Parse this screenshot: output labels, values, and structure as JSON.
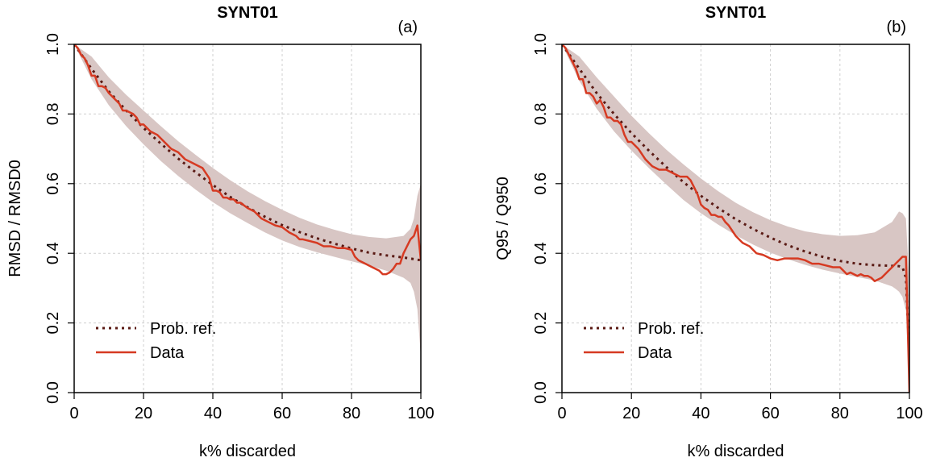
{
  "chart_data": [
    {
      "type": "line",
      "title": "SYNT01",
      "panel_label": "(a)",
      "xlabel": "k% discarded",
      "ylabel": "RMSD / RMSD0",
      "xlim": [
        0,
        100
      ],
      "ylim": [
        0,
        1
      ],
      "x_ticks": [
        "0",
        "20",
        "40",
        "60",
        "80",
        "100"
      ],
      "y_ticks": [
        "0.0",
        "0.2",
        "0.4",
        "0.6",
        "0.8",
        "1.0"
      ],
      "grid": true,
      "legend_position": "bottom-left",
      "series": [
        {
          "name": "Prob. ref.",
          "style": "dotted",
          "color": "#5a1a14",
          "x": [
            0,
            5,
            10,
            15,
            20,
            25,
            30,
            35,
            40,
            45,
            50,
            55,
            60,
            65,
            70,
            75,
            80,
            85,
            90,
            95,
            100
          ],
          "y": [
            1.0,
            0.93,
            0.865,
            0.81,
            0.76,
            0.715,
            0.672,
            0.633,
            0.596,
            0.562,
            0.532,
            0.505,
            0.481,
            0.461,
            0.443,
            0.428,
            0.414,
            0.402,
            0.394,
            0.388,
            0.38
          ]
        },
        {
          "name": "Data",
          "style": "solid",
          "color": "#d63a22",
          "x": [
            0,
            1,
            2,
            3,
            4,
            5,
            6,
            7,
            8,
            9,
            10,
            11,
            12,
            13,
            14,
            15,
            16,
            17,
            18,
            19,
            20,
            22,
            24,
            26,
            28,
            30,
            32,
            34,
            36,
            37,
            38,
            39,
            40,
            41,
            42,
            43,
            44,
            45,
            46,
            47,
            48,
            50,
            52,
            54,
            56,
            58,
            60,
            62,
            64,
            65,
            66,
            68,
            70,
            72,
            74,
            76,
            78,
            80,
            81,
            82,
            84,
            86,
            88,
            89,
            90,
            91,
            92,
            93,
            94,
            95,
            96,
            97,
            98,
            99,
            100
          ],
          "y": [
            1.0,
            0.99,
            0.97,
            0.96,
            0.94,
            0.91,
            0.91,
            0.88,
            0.88,
            0.875,
            0.86,
            0.85,
            0.84,
            0.83,
            0.81,
            0.81,
            0.805,
            0.8,
            0.79,
            0.77,
            0.77,
            0.75,
            0.74,
            0.72,
            0.7,
            0.69,
            0.67,
            0.66,
            0.65,
            0.645,
            0.63,
            0.615,
            0.58,
            0.58,
            0.575,
            0.56,
            0.56,
            0.555,
            0.555,
            0.545,
            0.545,
            0.53,
            0.52,
            0.5,
            0.49,
            0.48,
            0.475,
            0.46,
            0.45,
            0.44,
            0.44,
            0.435,
            0.43,
            0.42,
            0.42,
            0.415,
            0.415,
            0.41,
            0.39,
            0.38,
            0.37,
            0.36,
            0.35,
            0.34,
            0.34,
            0.345,
            0.355,
            0.37,
            0.37,
            0.4,
            0.42,
            0.44,
            0.45,
            0.48,
            0.38
          ]
        }
      ],
      "band": {
        "color": "#d8c6c4",
        "x": [
          0,
          5,
          10,
          15,
          20,
          25,
          30,
          35,
          40,
          45,
          50,
          55,
          60,
          65,
          70,
          75,
          80,
          85,
          90,
          95,
          97,
          98,
          99,
          100
        ],
        "upper": [
          1.0,
          0.965,
          0.905,
          0.855,
          0.81,
          0.765,
          0.722,
          0.683,
          0.645,
          0.61,
          0.578,
          0.55,
          0.525,
          0.502,
          0.483,
          0.468,
          0.455,
          0.447,
          0.443,
          0.45,
          0.47,
          0.5,
          0.565,
          0.6
        ],
        "lower": [
          1.0,
          0.9,
          0.825,
          0.765,
          0.713,
          0.665,
          0.622,
          0.583,
          0.547,
          0.515,
          0.487,
          0.46,
          0.437,
          0.418,
          0.403,
          0.39,
          0.377,
          0.365,
          0.35,
          0.33,
          0.315,
          0.29,
          0.24,
          0.1
        ]
      }
    },
    {
      "type": "line",
      "title": "SYNT01",
      "panel_label": "(b)",
      "xlabel": "k% discarded",
      "ylabel": "Q95 / Q950",
      "xlim": [
        0,
        100
      ],
      "ylim": [
        0,
        1
      ],
      "x_ticks": [
        "0",
        "20",
        "40",
        "60",
        "80",
        "100"
      ],
      "y_ticks": [
        "0.0",
        "0.2",
        "0.4",
        "0.6",
        "0.8",
        "1.0"
      ],
      "grid": true,
      "legend_position": "bottom-left",
      "series": [
        {
          "name": "Prob. ref.",
          "style": "dotted",
          "color": "#5a1a14",
          "x": [
            0,
            5,
            10,
            15,
            20,
            25,
            30,
            35,
            40,
            45,
            50,
            55,
            60,
            65,
            70,
            75,
            80,
            85,
            90,
            95,
            97,
            98,
            99,
            100
          ],
          "y": [
            1.0,
            0.93,
            0.86,
            0.8,
            0.745,
            0.695,
            0.648,
            0.604,
            0.565,
            0.53,
            0.498,
            0.47,
            0.445,
            0.423,
            0.405,
            0.39,
            0.378,
            0.37,
            0.366,
            0.364,
            0.363,
            0.36,
            0.33,
            0.1
          ]
        },
        {
          "name": "Data",
          "style": "solid",
          "color": "#d63a22",
          "x": [
            0,
            1,
            2,
            3,
            4,
            5,
            6,
            7,
            8,
            9,
            10,
            11,
            12,
            13,
            14,
            15,
            16,
            17,
            18,
            19,
            20,
            22,
            24,
            26,
            28,
            30,
            32,
            34,
            36,
            37,
            38,
            39,
            40,
            41,
            42,
            43,
            44,
            45,
            46,
            47,
            48,
            50,
            52,
            54,
            56,
            58,
            60,
            62,
            64,
            66,
            68,
            70,
            72,
            74,
            76,
            78,
            80,
            81,
            82,
            83,
            84,
            85,
            86,
            87,
            88,
            89,
            90,
            91,
            92,
            93,
            94,
            95,
            96,
            97,
            98,
            99,
            100
          ],
          "y": [
            1.0,
            0.99,
            0.97,
            0.95,
            0.93,
            0.9,
            0.9,
            0.86,
            0.86,
            0.85,
            0.83,
            0.84,
            0.82,
            0.79,
            0.79,
            0.78,
            0.78,
            0.77,
            0.74,
            0.72,
            0.72,
            0.7,
            0.67,
            0.65,
            0.64,
            0.64,
            0.63,
            0.62,
            0.62,
            0.61,
            0.59,
            0.57,
            0.54,
            0.53,
            0.525,
            0.51,
            0.51,
            0.505,
            0.505,
            0.49,
            0.48,
            0.45,
            0.43,
            0.42,
            0.4,
            0.395,
            0.385,
            0.38,
            0.385,
            0.385,
            0.385,
            0.38,
            0.37,
            0.37,
            0.365,
            0.36,
            0.36,
            0.35,
            0.34,
            0.345,
            0.34,
            0.335,
            0.34,
            0.335,
            0.335,
            0.33,
            0.32,
            0.325,
            0.33,
            0.34,
            0.35,
            0.36,
            0.37,
            0.38,
            0.39,
            0.39,
            0.0
          ]
        }
      ],
      "band": {
        "color": "#d8c6c4",
        "x": [
          0,
          5,
          10,
          15,
          20,
          25,
          30,
          35,
          40,
          45,
          50,
          55,
          60,
          65,
          70,
          75,
          80,
          85,
          90,
          95,
          96,
          97,
          98,
          99,
          100
        ],
        "upper": [
          1.0,
          0.965,
          0.905,
          0.85,
          0.795,
          0.745,
          0.698,
          0.655,
          0.615,
          0.578,
          0.545,
          0.518,
          0.495,
          0.477,
          0.463,
          0.455,
          0.45,
          0.452,
          0.46,
          0.49,
          0.505,
          0.52,
          0.515,
          0.5,
          0.3
        ],
        "lower": [
          1.0,
          0.895,
          0.815,
          0.75,
          0.695,
          0.645,
          0.598,
          0.553,
          0.515,
          0.482,
          0.452,
          0.425,
          0.402,
          0.383,
          0.367,
          0.353,
          0.342,
          0.332,
          0.322,
          0.305,
          0.298,
          0.29,
          0.275,
          0.235,
          0.0
        ]
      }
    }
  ]
}
